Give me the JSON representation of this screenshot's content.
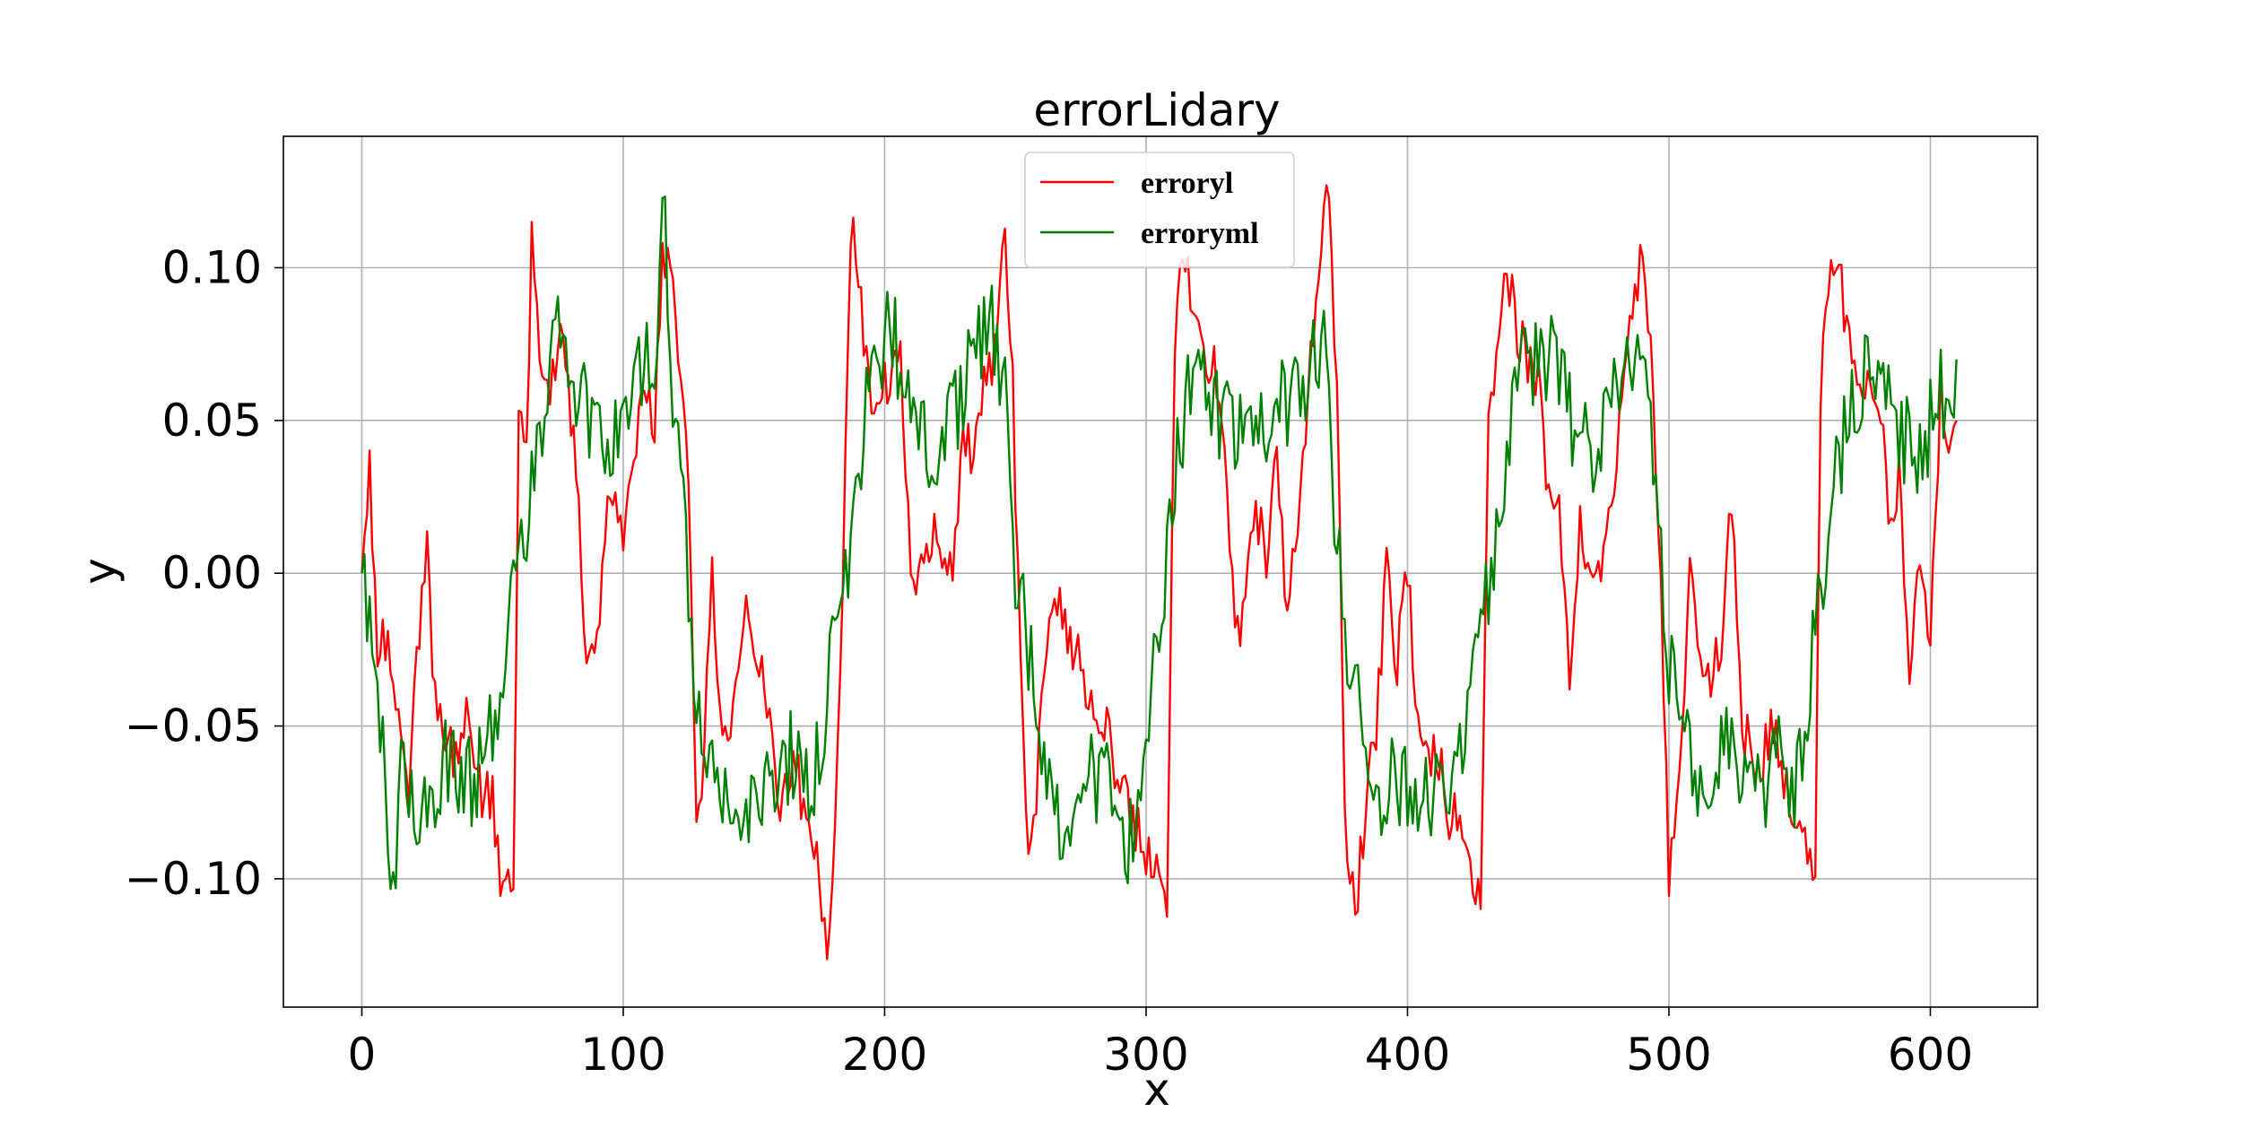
{
  "chart_data": {
    "type": "line",
    "title": "errorLidary",
    "xlabel": "x",
    "ylabel": "y",
    "xlim": [
      -30,
      641
    ],
    "ylim": [
      -0.142,
      0.143
    ],
    "xticks": [
      0,
      100,
      200,
      300,
      400,
      500,
      600
    ],
    "xtick_labels": [
      "0",
      "100",
      "200",
      "300",
      "400",
      "500",
      "600"
    ],
    "yticks": [
      0.1,
      0.05,
      0.0,
      -0.05,
      -0.1
    ],
    "ytick_labels": [
      "0.10",
      "0.05",
      "0.00",
      "−0.05",
      "−0.10"
    ],
    "grid": true,
    "legend_position": "upper-center",
    "x_range": [
      0,
      610
    ],
    "series": [
      {
        "name": "erroryl",
        "color": "#ff0000",
        "knots": [
          [
            0,
            0.0
          ],
          [
            3,
            0.033
          ],
          [
            6,
            -0.022
          ],
          [
            10,
            -0.02
          ],
          [
            15,
            -0.06
          ],
          [
            18,
            -0.07
          ],
          [
            22,
            -0.02
          ],
          [
            25,
            0.018
          ],
          [
            27,
            -0.035
          ],
          [
            30,
            -0.045
          ],
          [
            35,
            -0.06
          ],
          [
            40,
            -0.045
          ],
          [
            45,
            -0.07
          ],
          [
            50,
            -0.075
          ],
          [
            54,
            -0.105
          ],
          [
            58,
            -0.105
          ],
          [
            60,
            0.048
          ],
          [
            63,
            0.045
          ],
          [
            65,
            0.108
          ],
          [
            68,
            0.075
          ],
          [
            72,
            0.055
          ],
          [
            75,
            0.08
          ],
          [
            78,
            0.07
          ],
          [
            82,
            0.03
          ],
          [
            86,
            -0.025
          ],
          [
            90,
            -0.02
          ],
          [
            95,
            0.03
          ],
          [
            100,
            0.005
          ],
          [
            104,
            0.04
          ],
          [
            108,
            0.06
          ],
          [
            112,
            0.05
          ],
          [
            115,
            0.1
          ],
          [
            118,
            0.1
          ],
          [
            121,
            0.075
          ],
          [
            125,
            0.03
          ],
          [
            128,
            -0.09
          ],
          [
            131,
            -0.06
          ],
          [
            134,
            0.0
          ],
          [
            138,
            -0.055
          ],
          [
            142,
            -0.05
          ],
          [
            146,
            -0.015
          ],
          [
            150,
            -0.02
          ],
          [
            155,
            -0.04
          ],
          [
            160,
            -0.075
          ],
          [
            165,
            -0.06
          ],
          [
            170,
            -0.08
          ],
          [
            174,
            -0.09
          ],
          [
            178,
            -0.13
          ],
          [
            180,
            -0.11
          ],
          [
            184,
            0.0
          ],
          [
            187,
            0.115
          ],
          [
            190,
            0.1
          ],
          [
            194,
            0.06
          ],
          [
            198,
            0.06
          ],
          [
            202,
            0.06
          ],
          [
            206,
            0.07
          ],
          [
            210,
            0.0
          ],
          [
            214,
            0.0
          ],
          [
            218,
            0.015
          ],
          [
            222,
            0.0
          ],
          [
            226,
            0.005
          ],
          [
            230,
            0.04
          ],
          [
            234,
            0.04
          ],
          [
            238,
            0.06
          ],
          [
            242,
            0.07
          ],
          [
            246,
            0.115
          ],
          [
            249,
            0.06
          ],
          [
            252,
            -0.03
          ],
          [
            255,
            -0.09
          ],
          [
            258,
            -0.07
          ],
          [
            262,
            -0.02
          ],
          [
            266,
            -0.005
          ],
          [
            270,
            -0.02
          ],
          [
            275,
            -0.03
          ],
          [
            280,
            -0.05
          ],
          [
            285,
            -0.05
          ],
          [
            290,
            -0.07
          ],
          [
            295,
            -0.08
          ],
          [
            300,
            -0.09
          ],
          [
            304,
            -0.095
          ],
          [
            308,
            -0.11
          ],
          [
            311,
            0.075
          ],
          [
            314,
            0.11
          ],
          [
            318,
            0.09
          ],
          [
            322,
            0.07
          ],
          [
            326,
            0.07
          ],
          [
            330,
            0.04
          ],
          [
            334,
            -0.02
          ],
          [
            338,
            -0.01
          ],
          [
            342,
            0.02
          ],
          [
            346,
            0.005
          ],
          [
            350,
            0.04
          ],
          [
            354,
            -0.02
          ],
          [
            358,
            0.02
          ],
          [
            362,
            0.06
          ],
          [
            366,
            0.1
          ],
          [
            370,
            0.125
          ],
          [
            373,
            0.06
          ],
          [
            376,
            -0.08
          ],
          [
            380,
            -0.115
          ],
          [
            384,
            -0.075
          ],
          [
            388,
            -0.05
          ],
          [
            392,
            0.0
          ],
          [
            396,
            -0.03
          ],
          [
            400,
            0.0
          ],
          [
            404,
            -0.05
          ],
          [
            408,
            -0.06
          ],
          [
            412,
            -0.06
          ],
          [
            416,
            -0.08
          ],
          [
            420,
            -0.08
          ],
          [
            424,
            -0.1
          ],
          [
            428,
            -0.11
          ],
          [
            431,
            0.06
          ],
          [
            434,
            0.07
          ],
          [
            438,
            0.1
          ],
          [
            442,
            0.08
          ],
          [
            446,
            0.07
          ],
          [
            450,
            0.065
          ],
          [
            454,
            0.025
          ],
          [
            458,
            0.025
          ],
          [
            462,
            -0.04
          ],
          [
            466,
            0.015
          ],
          [
            470,
            0.0
          ],
          [
            474,
            -0.005
          ],
          [
            478,
            0.02
          ],
          [
            482,
            0.06
          ],
          [
            486,
            0.085
          ],
          [
            490,
            0.105
          ],
          [
            494,
            0.06
          ],
          [
            497,
            0.0
          ],
          [
            500,
            -0.1
          ],
          [
            504,
            -0.07
          ],
          [
            508,
            0.0
          ],
          [
            512,
            -0.02
          ],
          [
            516,
            -0.04
          ],
          [
            520,
            -0.02
          ],
          [
            524,
            0.025
          ],
          [
            528,
            -0.05
          ],
          [
            532,
            -0.06
          ],
          [
            536,
            -0.06
          ],
          [
            540,
            -0.05
          ],
          [
            544,
            -0.07
          ],
          [
            548,
            -0.08
          ],
          [
            552,
            -0.08
          ],
          [
            556,
            -0.105
          ],
          [
            558,
            0.06
          ],
          [
            562,
            0.1
          ],
          [
            565,
            0.1
          ],
          [
            568,
            0.08
          ],
          [
            572,
            0.07
          ],
          [
            576,
            0.06
          ],
          [
            580,
            0.06
          ],
          [
            584,
            0.02
          ],
          [
            588,
            0.03
          ],
          [
            592,
            -0.03
          ],
          [
            596,
            0.0
          ],
          [
            600,
            -0.02
          ],
          [
            604,
            0.06
          ],
          [
            608,
            0.04
          ],
          [
            610,
            0.05
          ]
        ]
      },
      {
        "name": "erroryml",
        "color": "#008000",
        "knots": [
          [
            0,
            0.0
          ],
          [
            3,
            -0.01
          ],
          [
            5,
            -0.04
          ],
          [
            8,
            -0.05
          ],
          [
            10,
            -0.09
          ],
          [
            12,
            -0.105
          ],
          [
            15,
            -0.06
          ],
          [
            18,
            -0.07
          ],
          [
            22,
            -0.075
          ],
          [
            26,
            -0.07
          ],
          [
            30,
            -0.065
          ],
          [
            35,
            -0.06
          ],
          [
            40,
            -0.07
          ],
          [
            45,
            -0.065
          ],
          [
            50,
            -0.05
          ],
          [
            54,
            -0.04
          ],
          [
            57,
            -0.005
          ],
          [
            60,
            0.0
          ],
          [
            62,
            0.005
          ],
          [
            65,
            0.025
          ],
          [
            68,
            0.04
          ],
          [
            72,
            0.07
          ],
          [
            76,
            0.085
          ],
          [
            80,
            0.06
          ],
          [
            84,
            0.06
          ],
          [
            88,
            0.045
          ],
          [
            92,
            0.04
          ],
          [
            96,
            0.045
          ],
          [
            100,
            0.055
          ],
          [
            104,
            0.06
          ],
          [
            108,
            0.065
          ],
          [
            112,
            0.07
          ],
          [
            116,
            0.12
          ],
          [
            119,
            0.06
          ],
          [
            122,
            0.03
          ],
          [
            126,
            -0.02
          ],
          [
            130,
            -0.05
          ],
          [
            134,
            -0.07
          ],
          [
            138,
            -0.07
          ],
          [
            142,
            -0.08
          ],
          [
            146,
            -0.075
          ],
          [
            150,
            -0.07
          ],
          [
            155,
            -0.07
          ],
          [
            160,
            -0.065
          ],
          [
            165,
            -0.06
          ],
          [
            170,
            -0.07
          ],
          [
            175,
            -0.06
          ],
          [
            178,
            -0.04
          ],
          [
            182,
            -0.01
          ],
          [
            186,
            0.0
          ],
          [
            190,
            0.03
          ],
          [
            194,
            0.06
          ],
          [
            198,
            0.07
          ],
          [
            202,
            0.08
          ],
          [
            206,
            0.07
          ],
          [
            210,
            0.06
          ],
          [
            214,
            0.05
          ],
          [
            218,
            0.04
          ],
          [
            222,
            0.04
          ],
          [
            226,
            0.05
          ],
          [
            230,
            0.06
          ],
          [
            234,
            0.07
          ],
          [
            238,
            0.08
          ],
          [
            242,
            0.08
          ],
          [
            246,
            0.06
          ],
          [
            250,
            0.0
          ],
          [
            254,
            -0.02
          ],
          [
            258,
            -0.04
          ],
          [
            262,
            -0.07
          ],
          [
            266,
            -0.08
          ],
          [
            270,
            -0.08
          ],
          [
            275,
            -0.06
          ],
          [
            280,
            -0.07
          ],
          [
            285,
            -0.07
          ],
          [
            290,
            -0.08
          ],
          [
            295,
            -0.09
          ],
          [
            300,
            -0.07
          ],
          [
            304,
            -0.02
          ],
          [
            308,
            0.0
          ],
          [
            312,
            0.04
          ],
          [
            316,
            0.06
          ],
          [
            320,
            0.06
          ],
          [
            324,
            0.06
          ],
          [
            328,
            0.05
          ],
          [
            332,
            0.05
          ],
          [
            336,
            0.05
          ],
          [
            340,
            0.05
          ],
          [
            344,
            0.05
          ],
          [
            348,
            0.05
          ],
          [
            352,
            0.055
          ],
          [
            356,
            0.055
          ],
          [
            360,
            0.06
          ],
          [
            364,
            0.07
          ],
          [
            368,
            0.075
          ],
          [
            372,
            0.02
          ],
          [
            376,
            -0.02
          ],
          [
            380,
            -0.04
          ],
          [
            384,
            -0.06
          ],
          [
            388,
            -0.07
          ],
          [
            392,
            -0.07
          ],
          [
            396,
            -0.07
          ],
          [
            400,
            -0.07
          ],
          [
            404,
            -0.075
          ],
          [
            408,
            -0.07
          ],
          [
            412,
            -0.075
          ],
          [
            416,
            -0.075
          ],
          [
            420,
            -0.065
          ],
          [
            424,
            -0.04
          ],
          [
            428,
            -0.02
          ],
          [
            432,
            0.0
          ],
          [
            436,
            0.03
          ],
          [
            440,
            0.05
          ],
          [
            444,
            0.07
          ],
          [
            448,
            0.07
          ],
          [
            452,
            0.065
          ],
          [
            456,
            0.07
          ],
          [
            460,
            0.06
          ],
          [
            464,
            0.04
          ],
          [
            468,
            0.05
          ],
          [
            472,
            0.04
          ],
          [
            476,
            0.05
          ],
          [
            480,
            0.06
          ],
          [
            484,
            0.07
          ],
          [
            488,
            0.08
          ],
          [
            492,
            0.06
          ],
          [
            496,
            0.02
          ],
          [
            500,
            -0.03
          ],
          [
            504,
            -0.05
          ],
          [
            508,
            -0.06
          ],
          [
            512,
            -0.07
          ],
          [
            516,
            -0.09
          ],
          [
            520,
            -0.06
          ],
          [
            524,
            -0.06
          ],
          [
            528,
            -0.06
          ],
          [
            532,
            -0.07
          ],
          [
            536,
            -0.07
          ],
          [
            540,
            -0.06
          ],
          [
            544,
            -0.065
          ],
          [
            548,
            -0.07
          ],
          [
            552,
            -0.05
          ],
          [
            556,
            -0.02
          ],
          [
            560,
            0.0
          ],
          [
            564,
            0.03
          ],
          [
            568,
            0.05
          ],
          [
            572,
            0.06
          ],
          [
            576,
            0.07
          ],
          [
            580,
            0.07
          ],
          [
            584,
            0.06
          ],
          [
            588,
            0.05
          ],
          [
            592,
            0.04
          ],
          [
            596,
            0.04
          ],
          [
            600,
            0.05
          ],
          [
            604,
            0.06
          ],
          [
            608,
            0.06
          ],
          [
            610,
            0.07
          ]
        ]
      }
    ]
  }
}
